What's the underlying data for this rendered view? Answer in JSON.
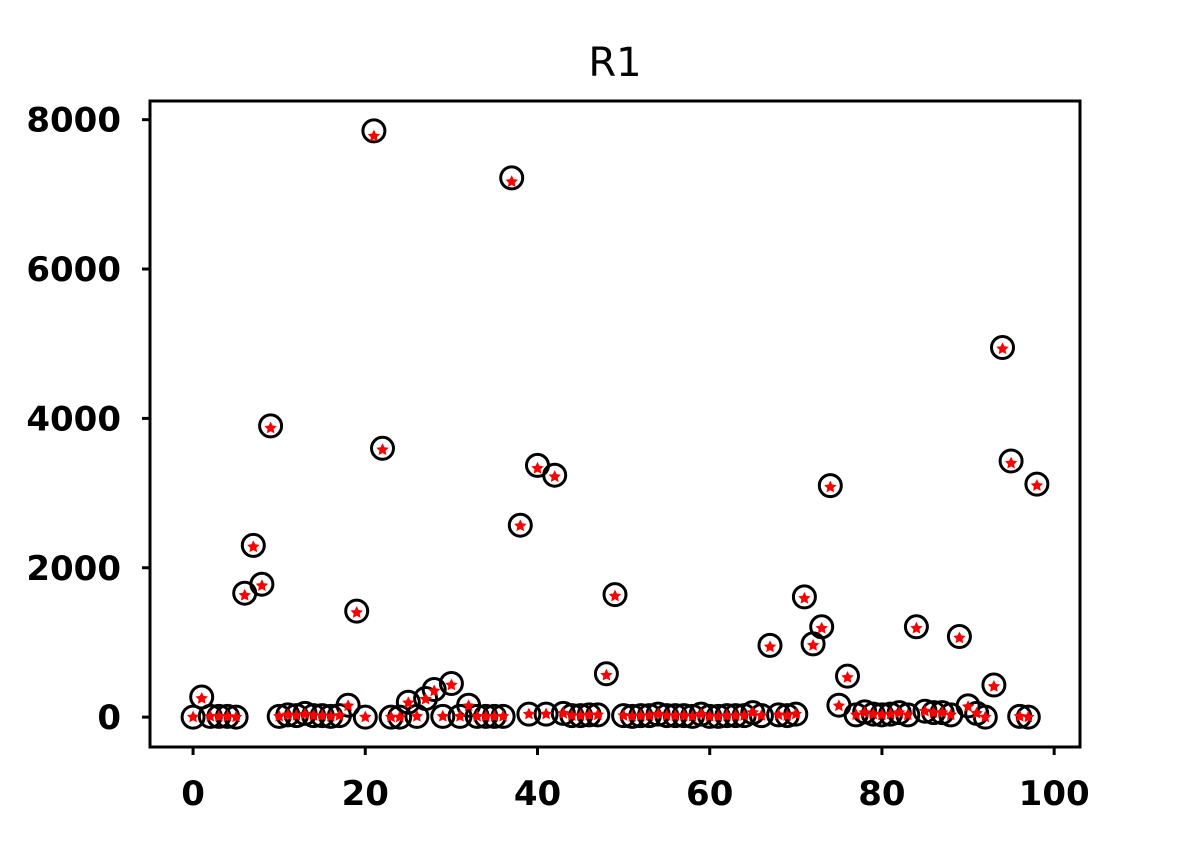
{
  "chart_data": {
    "type": "scatter",
    "title": "R1",
    "xlabel": "",
    "ylabel": "",
    "xlim": [
      -5,
      103
    ],
    "ylim": [
      -400,
      8250
    ],
    "xticks": [
      0,
      20,
      40,
      60,
      80,
      100
    ],
    "yticks": [
      0,
      2000,
      4000,
      6000,
      8000
    ],
    "xtick_labels": [
      "0",
      "20",
      "40",
      "60",
      "80",
      "100"
    ],
    "ytick_labels": [
      "0",
      "2000",
      "4000",
      "6000",
      "8000"
    ],
    "grid": false,
    "legend": "none",
    "colors": {
      "circle_series": "#000000",
      "star_series": "#ff0000"
    },
    "series": [
      {
        "marker": "open-circle",
        "x": [
          0,
          1,
          2,
          3,
          4,
          5,
          6,
          7,
          8,
          9,
          10,
          11,
          12,
          13,
          14,
          15,
          16,
          17,
          18,
          19,
          20,
          21,
          22,
          23,
          24,
          25,
          26,
          27,
          28,
          29,
          30,
          31,
          32,
          33,
          34,
          35,
          36,
          37,
          38,
          39,
          40,
          41,
          42,
          43,
          44,
          45,
          46,
          47,
          48,
          49,
          50,
          51,
          52,
          53,
          54,
          55,
          56,
          57,
          58,
          59,
          60,
          61,
          62,
          63,
          64,
          65,
          66,
          67,
          68,
          69,
          70,
          71,
          72,
          73,
          74,
          75,
          76,
          77,
          78,
          79,
          80,
          81,
          82,
          83,
          84,
          85,
          86,
          87,
          88,
          89,
          90,
          91,
          92,
          93,
          94,
          95,
          96,
          97,
          98
        ],
        "y": [
          0,
          270,
          10,
          10,
          10,
          0,
          1660,
          2300,
          1780,
          3900,
          10,
          30,
          20,
          50,
          20,
          20,
          10,
          20,
          160,
          1420,
          0,
          7850,
          3600,
          0,
          0,
          200,
          10,
          250,
          370,
          10,
          450,
          10,
          160,
          10,
          10,
          10,
          10,
          7220,
          2570,
          40,
          3370,
          40,
          3240,
          50,
          20,
          20,
          30,
          30,
          580,
          1640,
          20,
          10,
          20,
          20,
          40,
          20,
          20,
          20,
          10,
          40,
          10,
          10,
          20,
          20,
          20,
          60,
          20,
          960,
          30,
          20,
          40,
          1610,
          980,
          1210,
          3100,
          160,
          550,
          30,
          70,
          40,
          30,
          40,
          60,
          30,
          1210,
          80,
          60,
          60,
          30,
          1080,
          150,
          50,
          0,
          430,
          4950,
          3430,
          10,
          0,
          3120
        ]
      },
      {
        "marker": "red-star",
        "x": [
          0,
          1,
          2,
          3,
          4,
          5,
          6,
          7,
          8,
          9,
          10,
          11,
          12,
          13,
          14,
          15,
          16,
          17,
          18,
          19,
          20,
          21,
          22,
          23,
          24,
          25,
          26,
          27,
          28,
          29,
          30,
          31,
          32,
          33,
          34,
          35,
          36,
          37,
          38,
          39,
          40,
          41,
          42,
          43,
          44,
          45,
          46,
          47,
          48,
          49,
          50,
          51,
          52,
          53,
          54,
          55,
          56,
          57,
          58,
          59,
          60,
          61,
          62,
          63,
          64,
          65,
          66,
          67,
          68,
          69,
          70,
          71,
          72,
          73,
          74,
          75,
          76,
          77,
          78,
          79,
          80,
          81,
          82,
          83,
          84,
          85,
          86,
          87,
          88,
          89,
          90,
          91,
          92,
          93,
          94,
          95,
          96,
          97,
          98
        ],
        "y": [
          0,
          250,
          10,
          10,
          10,
          0,
          1630,
          2280,
          1760,
          3870,
          10,
          30,
          20,
          40,
          20,
          20,
          10,
          20,
          150,
          1400,
          0,
          7780,
          3580,
          0,
          0,
          190,
          10,
          240,
          350,
          10,
          430,
          10,
          150,
          10,
          10,
          10,
          10,
          7170,
          2560,
          40,
          3330,
          40,
          3220,
          50,
          20,
          20,
          30,
          30,
          560,
          1620,
          20,
          10,
          20,
          20,
          40,
          20,
          20,
          20,
          10,
          40,
          10,
          10,
          20,
          20,
          20,
          60,
          20,
          940,
          30,
          20,
          40,
          1590,
          960,
          1190,
          3080,
          150,
          530,
          30,
          60,
          40,
          30,
          40,
          60,
          30,
          1190,
          80,
          60,
          60,
          30,
          1060,
          140,
          50,
          0,
          410,
          4930,
          3400,
          10,
          0,
          3100
        ]
      }
    ]
  }
}
